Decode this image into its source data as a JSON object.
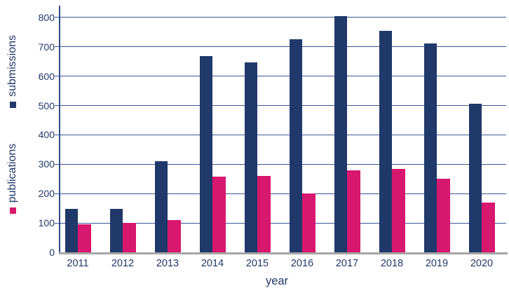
{
  "colors": {
    "navy": "#21386B",
    "pink": "#D8176F",
    "gridline": "#3A5694",
    "y_axis_line": "#2F4A87",
    "x_axis_line_gray": "#A6A6A6",
    "label_text": "#21386B",
    "background": "#FFFFFF"
  },
  "chart_data": {
    "type": "bar",
    "title": "",
    "categories": [
      "2011",
      "2012",
      "2013",
      "2014",
      "2015",
      "2016",
      "2017",
      "2018",
      "2019",
      "2020"
    ],
    "series": [
      {
        "name": "submissions",
        "color": "#21386B",
        "values": [
          148,
          148,
          310,
          668,
          646,
          725,
          805,
          755,
          712,
          505
        ]
      },
      {
        "name": "publications",
        "color": "#D8176F",
        "values": [
          95,
          100,
          110,
          258,
          260,
          200,
          280,
          285,
          250,
          170
        ]
      }
    ],
    "xlabel": "year",
    "ylim": [
      0,
      850
    ],
    "ytick_step": 100,
    "yticks": [
      0,
      100,
      200,
      300,
      400,
      500,
      600,
      700,
      800
    ],
    "grid": true,
    "grouped": true,
    "legend_position": "rotated series titles with color swatches along left y-axis"
  }
}
